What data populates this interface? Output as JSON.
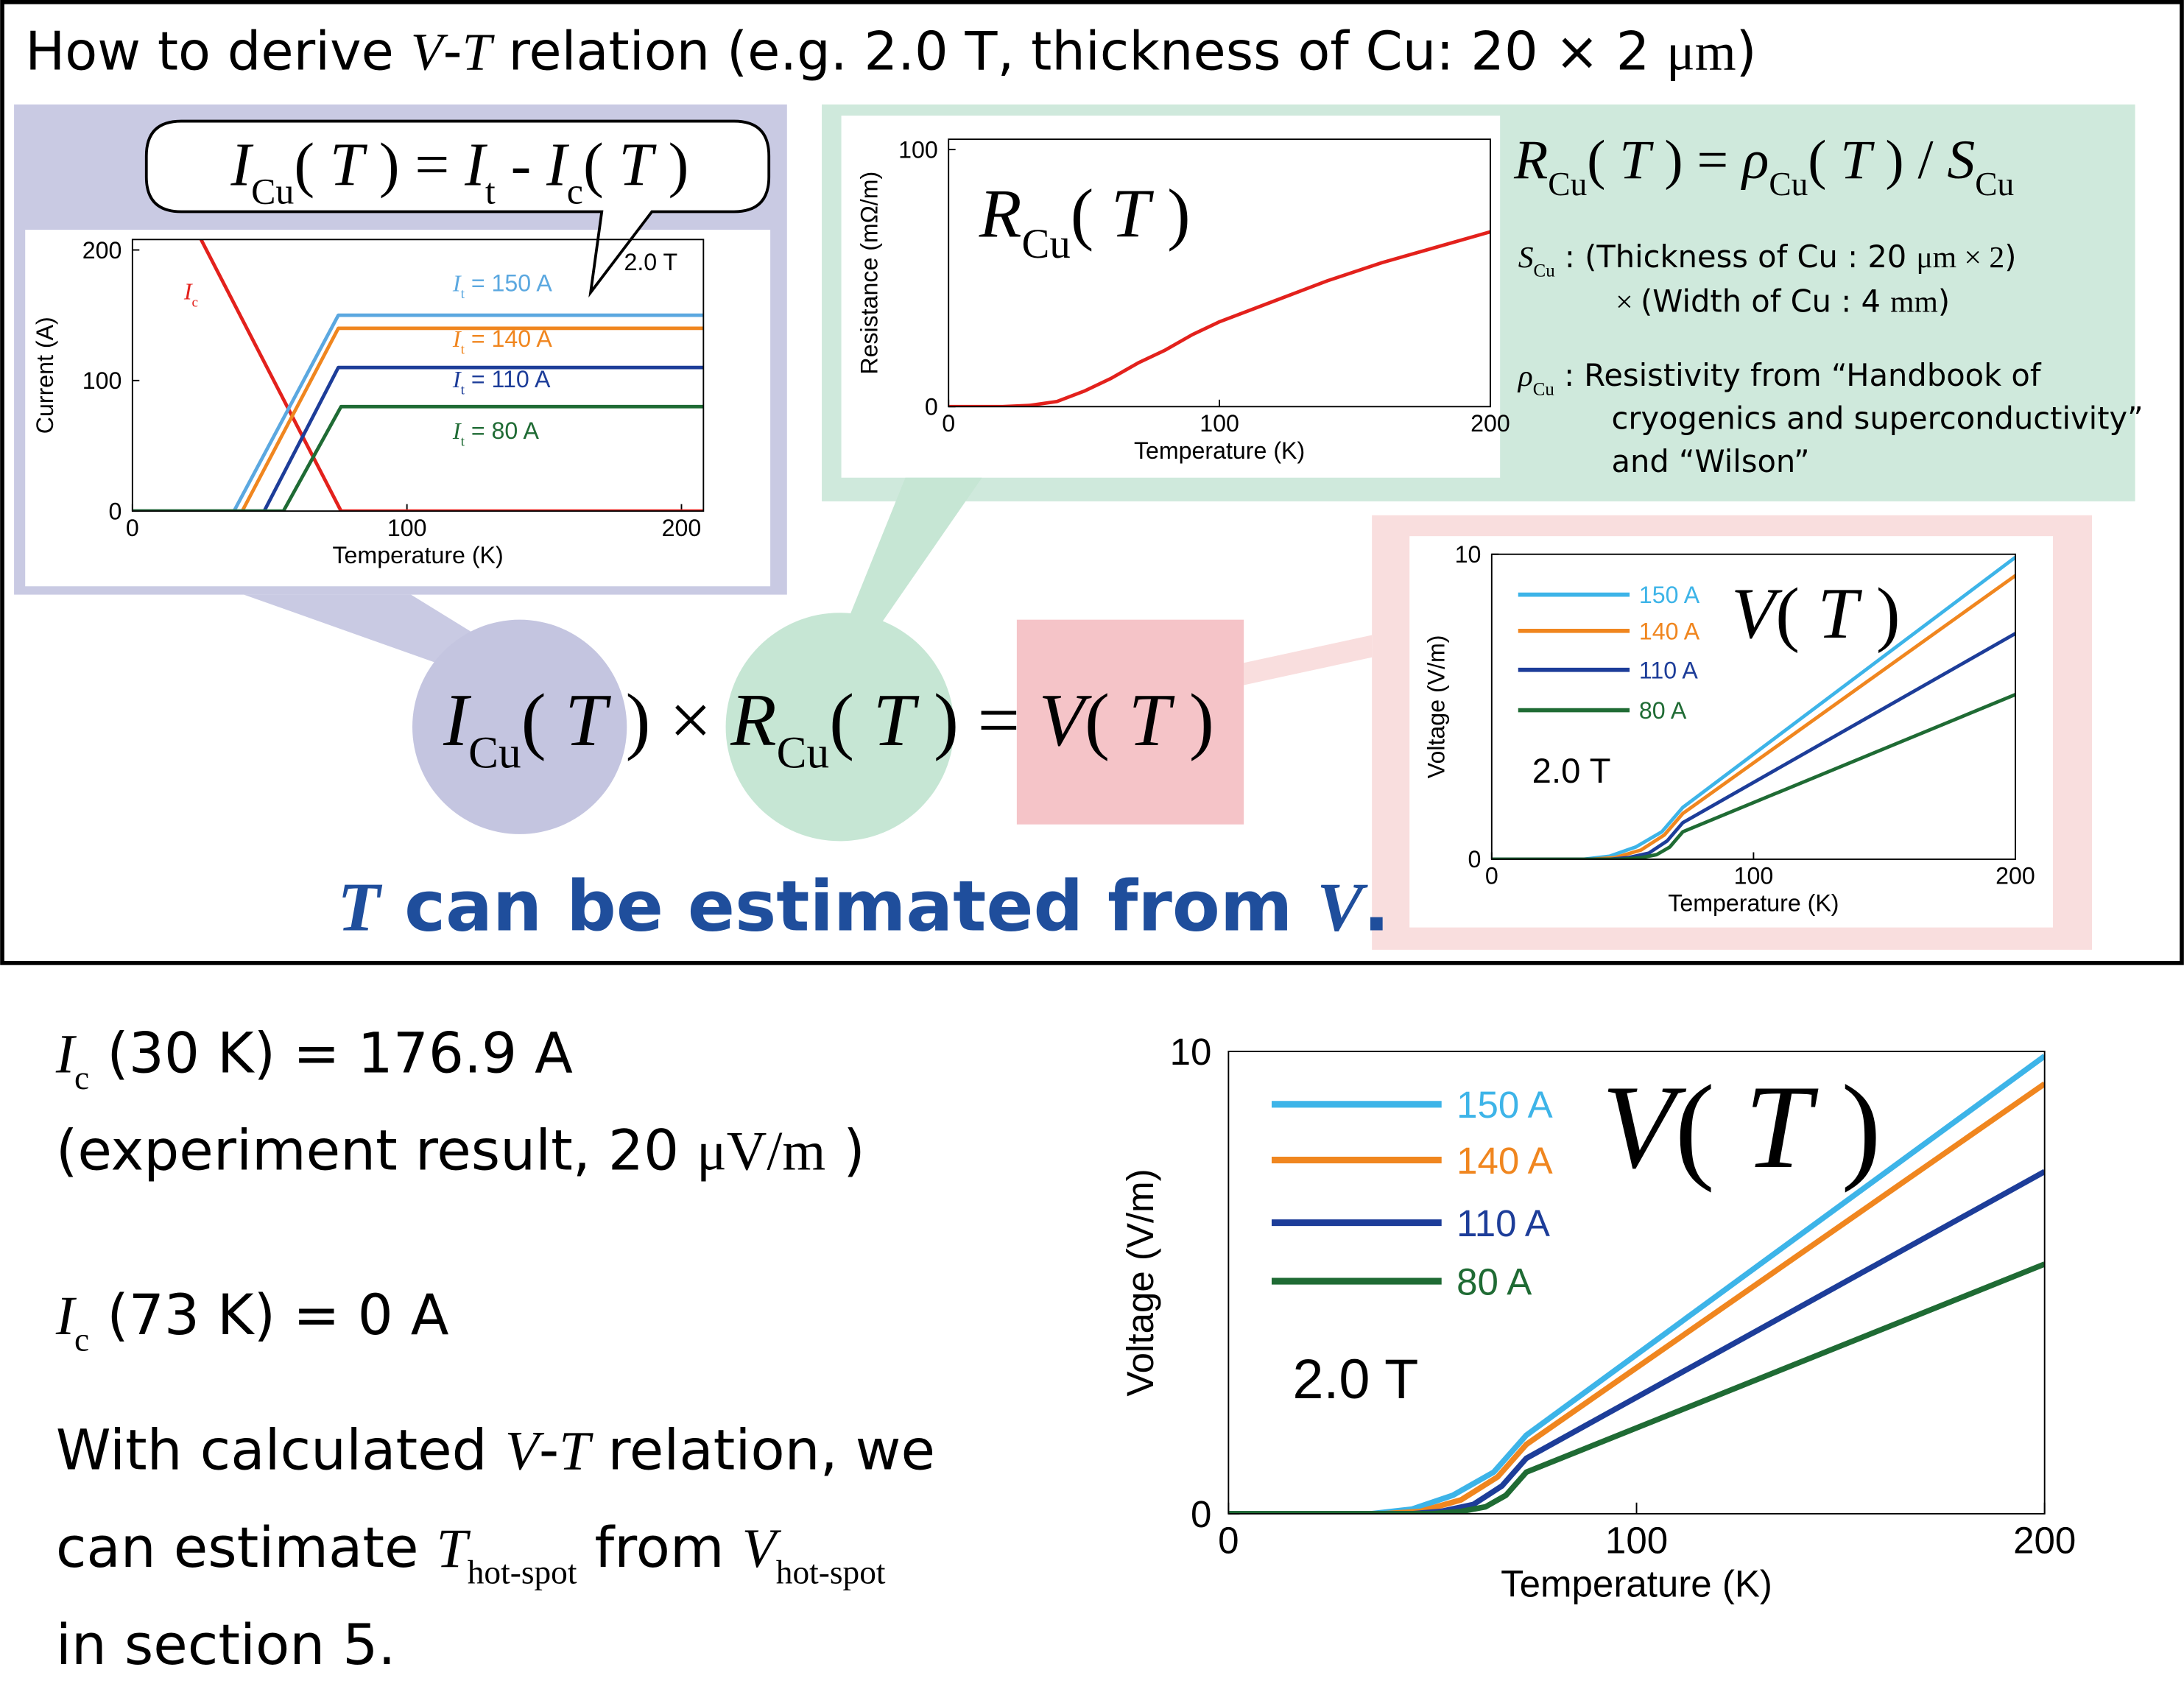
{
  "title": [
    {
      "text": "How to derive "
    },
    {
      "text": "V",
      "style": "italic"
    },
    {
      "text": "-"
    },
    {
      "text": "T",
      "style": "italic"
    },
    {
      "text": " relation (e.g. 2.0 T, thickness of Cu: 20 × 2 "
    },
    {
      "text": "μm",
      "style": "serif"
    },
    {
      "text": ")"
    }
  ],
  "formula_box": [
    {
      "text": "I",
      "style": "italic"
    },
    {
      "text": "Cu",
      "style": "sub"
    },
    {
      "text": "( ",
      "style": "serif"
    },
    {
      "text": "T",
      "style": "italic"
    },
    {
      "text": " )  =  ",
      "style": "serif"
    },
    {
      "text": "I",
      "style": "italic"
    },
    {
      "text": "t",
      "style": "sub"
    },
    {
      "text": " - ",
      "style": "serif"
    },
    {
      "text": "I",
      "style": "italic"
    },
    {
      "text": "c",
      "style": "sub"
    },
    {
      "text": "( ",
      "style": "serif"
    },
    {
      "text": "T",
      "style": "italic"
    },
    {
      "text": " )",
      "style": "serif"
    }
  ],
  "formula_rcu": [
    {
      "text": "R",
      "style": "italic"
    },
    {
      "text": "Cu",
      "style": "sub"
    },
    {
      "text": "( ",
      "style": "serif"
    },
    {
      "text": "T",
      "style": "italic"
    },
    {
      "text": " )  =  ",
      "style": "serif"
    },
    {
      "text": "ρ",
      "style": "italic"
    },
    {
      "text": "Cu",
      "style": "sub"
    },
    {
      "text": "( ",
      "style": "serif"
    },
    {
      "text": "T",
      "style": "italic"
    },
    {
      "text": " ) / ",
      "style": "serif"
    },
    {
      "text": "S",
      "style": "italic"
    },
    {
      "text": "Cu",
      "style": "sub"
    }
  ],
  "s_cu_note": [
    [
      {
        "text": "S",
        "style": "italic"
      },
      {
        "text": "Cu",
        "style": "sub"
      },
      {
        "text": " : (Thickness of Cu : 20 "
      },
      {
        "text": "μm × 2",
        "style": "serif"
      },
      {
        "text": ")"
      }
    ],
    [
      {
        "text": "× ",
        "style": "serif"
      },
      {
        "text": " (Width of Cu : 4 "
      },
      {
        "text": "mm",
        "style": "serif"
      },
      {
        "text": ")"
      }
    ]
  ],
  "rho_cu_note": [
    [
      {
        "text": "ρ",
        "style": "italic"
      },
      {
        "text": "Cu",
        "style": "sub"
      },
      {
        "text": " : Resistivity from “Handbook of"
      }
    ],
    [
      {
        "text": "cryogenics and superconductivity”"
      }
    ],
    [
      {
        "text": "and “Wilson”"
      }
    ]
  ],
  "main_formula": [
    {
      "text": "I",
      "style": "italic"
    },
    {
      "text": "Cu",
      "style": "sub"
    },
    {
      "text": "( ",
      "style": "serif"
    },
    {
      "text": "T",
      "style": "italic"
    },
    {
      "text": " ) × ",
      "style": "serif"
    },
    {
      "text": "R",
      "style": "italic"
    },
    {
      "text": "Cu",
      "style": "sub"
    },
    {
      "text": "( ",
      "style": "serif"
    },
    {
      "text": "T",
      "style": "italic"
    },
    {
      "text": " )  = ",
      "style": "serif"
    },
    {
      "text": "V",
      "style": "italic"
    },
    {
      "text": "( ",
      "style": "serif"
    },
    {
      "text": "T",
      "style": "italic"
    },
    {
      "text": " )",
      "style": "serif"
    }
  ],
  "conclusion": {
    "color": "#1f4e9c",
    "text": [
      {
        "text": "T",
        "style": "bold-italic"
      },
      {
        "text": " can be estimated from "
      },
      {
        "text": "V",
        "style": "bold-italic"
      },
      {
        "text": "."
      }
    ]
  },
  "notes": [
    [
      {
        "text": "I",
        "style": "italic"
      },
      {
        "text": "c",
        "style": "sub"
      },
      {
        "text": " (30 K) = 176.9 A"
      }
    ],
    [
      {
        "text": "(experiment result, 20 "
      },
      {
        "text": "μV/m",
        "style": "serif"
      },
      {
        "text": " )"
      }
    ],
    [
      {
        "text": "I",
        "style": "italic"
      },
      {
        "text": "c",
        "style": "sub"
      },
      {
        "text": " (73 K) = 0 A"
      }
    ],
    [
      {
        "text": "With calculated "
      },
      {
        "text": "V",
        "style": "italic"
      },
      {
        "text": "-"
      },
      {
        "text": "T",
        "style": "italic"
      },
      {
        "text": " relation, we"
      }
    ],
    [
      {
        "text": "can estimate "
      },
      {
        "text": "T",
        "style": "italic"
      },
      {
        "text": "hot-spot",
        "style": "sub"
      },
      {
        "text": " from "
      },
      {
        "text": "V",
        "style": "italic"
      },
      {
        "text": "hot-spot",
        "style": "sub"
      }
    ],
    [
      {
        "text": "in section 5."
      }
    ]
  ],
  "chart_data": [
    {
      "type": "line",
      "xlabel": "Temperature (K)",
      "ylabel": "Current (A)",
      "xlim": [
        0,
        208
      ],
      "xticks": [
        0,
        100,
        200
      ],
      "ylim": [
        0,
        208
      ],
      "yticks": [
        0,
        100,
        200
      ],
      "annotations": [
        [
          {
            "text": "2.0 T"
          }
        ]
      ],
      "series": [
        {
          "name": [
            {
              "text": "I",
              "style": "italic"
            },
            {
              "text": "c",
              "style": "sub"
            }
          ],
          "color": "#e3211c",
          "x": [
            25,
            76,
            208
          ],
          "values": [
            208,
            0,
            0
          ]
        },
        {
          "name": [
            {
              "text": "I",
              "style": "italic"
            },
            {
              "text": "t",
              "style": "sub"
            },
            {
              "text": " = 150 A"
            }
          ],
          "color": "#5ba8e0",
          "x": [
            0,
            37,
            75,
            208
          ],
          "values": [
            0,
            0,
            150,
            150
          ]
        },
        {
          "name": [
            {
              "text": "I",
              "style": "italic"
            },
            {
              "text": "t",
              "style": "sub"
            },
            {
              "text": " = 140 A"
            }
          ],
          "color": "#f0861f",
          "x": [
            0,
            40,
            75,
            208
          ],
          "values": [
            0,
            0,
            140,
            140
          ]
        },
        {
          "name": [
            {
              "text": "I",
              "style": "italic"
            },
            {
              "text": "t",
              "style": "sub"
            },
            {
              "text": " = 110 A"
            }
          ],
          "color": "#1d3d99",
          "x": [
            0,
            48,
            75,
            208
          ],
          "values": [
            0,
            0,
            110,
            110
          ]
        },
        {
          "name": [
            {
              "text": "I",
              "style": "italic"
            },
            {
              "text": "t",
              "style": "sub"
            },
            {
              "text": " = 80 A"
            }
          ],
          "color": "#1f6b34",
          "x": [
            0,
            55,
            76,
            208
          ],
          "values": [
            0,
            0,
            80,
            80
          ]
        }
      ]
    },
    {
      "type": "line",
      "xlabel": "Temperature (K)",
      "ylabel": "Resistance (mΩ/m)",
      "xlim": [
        0,
        200
      ],
      "xticks": [
        0,
        100,
        200
      ],
      "ylim": [
        0,
        104
      ],
      "yticks": [
        0,
        100
      ],
      "annotations": [
        [
          {
            "text": "R",
            "style": "italic"
          },
          {
            "text": "Cu",
            "style": "sub"
          },
          {
            "text": "( ",
            "style": "serif"
          },
          {
            "text": "T",
            "style": "italic"
          },
          {
            "text": " )",
            "style": "serif"
          }
        ]
      ],
      "series": [
        {
          "color": "#e3211c",
          "x": [
            0,
            20,
            30,
            40,
            50,
            60,
            70,
            80,
            90,
            100,
            120,
            140,
            160,
            180,
            200
          ],
          "values": [
            0,
            0,
            0.5,
            2,
            6,
            11,
            17,
            22,
            28,
            33,
            41,
            49,
            56,
            62,
            68
          ]
        }
      ]
    },
    {
      "type": "line",
      "xlabel": "Temperature (K)",
      "ylabel": "Voltage (V/m)",
      "xlim": [
        0,
        200
      ],
      "xticks": [
        0,
        100,
        200
      ],
      "ylim": [
        0,
        10
      ],
      "yticks": [
        0,
        10
      ],
      "annotations": [
        [
          {
            "text": "V",
            "style": "italic"
          },
          {
            "text": "( ",
            "style": "serif"
          },
          {
            "text": "T",
            "style": "italic"
          },
          {
            "text": " )",
            "style": "serif"
          }
        ],
        [
          {
            "text": "2.0 T"
          }
        ]
      ],
      "series": [
        {
          "name": "150 A",
          "color": "#3db4e8",
          "x": [
            0,
            35,
            45,
            55,
            65,
            73,
            200
          ],
          "values": [
            0,
            0,
            0.1,
            0.4,
            0.9,
            1.7,
            9.9
          ]
        },
        {
          "name": "140 A",
          "color": "#f0861f",
          "x": [
            0,
            38,
            47,
            57,
            66,
            73,
            200
          ],
          "values": [
            0,
            0,
            0.05,
            0.3,
            0.8,
            1.5,
            9.3
          ]
        },
        {
          "name": "110 A",
          "color": "#1d3d99",
          "x": [
            0,
            45,
            52,
            60,
            67,
            73,
            200
          ],
          "values": [
            0,
            0,
            0.05,
            0.2,
            0.6,
            1.2,
            7.4
          ]
        },
        {
          "name": "80 A",
          "color": "#1f6b34",
          "x": [
            0,
            50,
            57,
            63,
            68,
            73,
            200
          ],
          "values": [
            0,
            0,
            0.05,
            0.15,
            0.4,
            0.9,
            5.4
          ]
        }
      ]
    }
  ]
}
